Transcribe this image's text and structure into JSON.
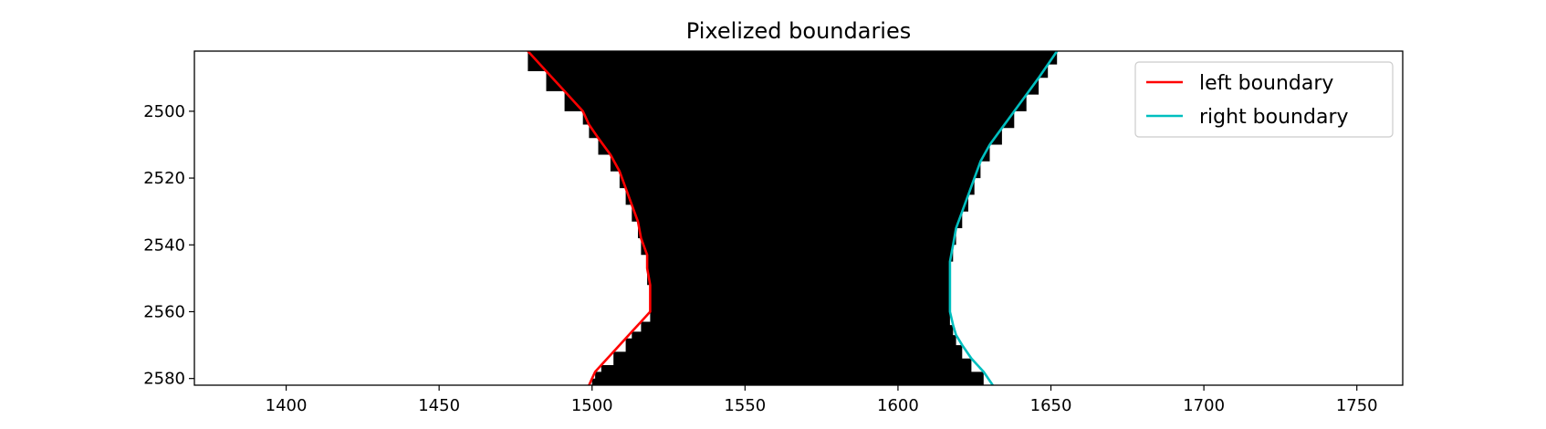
{
  "chart_data": {
    "type": "line",
    "title": "Pixelized boundaries",
    "xlabel": "",
    "ylabel": "",
    "xlim": [
      1370,
      1765
    ],
    "ylim": [
      2582,
      2482
    ],
    "y_inverted": true,
    "x_ticks": [
      1400,
      1450,
      1500,
      1550,
      1600,
      1650,
      1700,
      1750
    ],
    "y_ticks": [
      2500,
      2520,
      2540,
      2560,
      2580
    ],
    "grid": false,
    "legend": {
      "placement": "top-right",
      "entries": [
        "left boundary",
        "right boundary"
      ]
    },
    "colors": {
      "left": "#ff0000",
      "right": "#00bfbf",
      "fill": "#000000",
      "background": "#ffffff"
    },
    "series": [
      {
        "name": "left boundary",
        "points": [
          [
            1479,
            2482
          ],
          [
            1485,
            2488
          ],
          [
            1491,
            2494
          ],
          [
            1497,
            2500
          ],
          [
            1499,
            2504
          ],
          [
            1502,
            2508
          ],
          [
            1506,
            2513
          ],
          [
            1509,
            2518
          ],
          [
            1511,
            2523
          ],
          [
            1513,
            2528
          ],
          [
            1515,
            2533
          ],
          [
            1516,
            2538
          ],
          [
            1518,
            2543
          ],
          [
            1518,
            2547
          ],
          [
            1519,
            2552
          ],
          [
            1519,
            2556
          ],
          [
            1519,
            2560
          ],
          [
            1516,
            2563
          ],
          [
            1513,
            2566
          ],
          [
            1511,
            2568
          ],
          [
            1507,
            2572
          ],
          [
            1503,
            2576
          ],
          [
            1501,
            2578
          ],
          [
            1500,
            2580
          ],
          [
            1499,
            2582
          ]
        ]
      },
      {
        "name": "right boundary",
        "points": [
          [
            1652,
            2482
          ],
          [
            1649,
            2486
          ],
          [
            1646,
            2490
          ],
          [
            1642,
            2495
          ],
          [
            1638,
            2500
          ],
          [
            1634,
            2505
          ],
          [
            1630,
            2510
          ],
          [
            1627,
            2515
          ],
          [
            1625,
            2520
          ],
          [
            1623,
            2525
          ],
          [
            1621,
            2530
          ],
          [
            1619,
            2535
          ],
          [
            1618,
            2540
          ],
          [
            1617,
            2545
          ],
          [
            1617,
            2550
          ],
          [
            1617,
            2555
          ],
          [
            1617,
            2560
          ],
          [
            1618,
            2564
          ],
          [
            1619,
            2567
          ],
          [
            1621,
            2570
          ],
          [
            1624,
            2574
          ],
          [
            1628,
            2578
          ],
          [
            1631,
            2582
          ]
        ]
      }
    ]
  }
}
